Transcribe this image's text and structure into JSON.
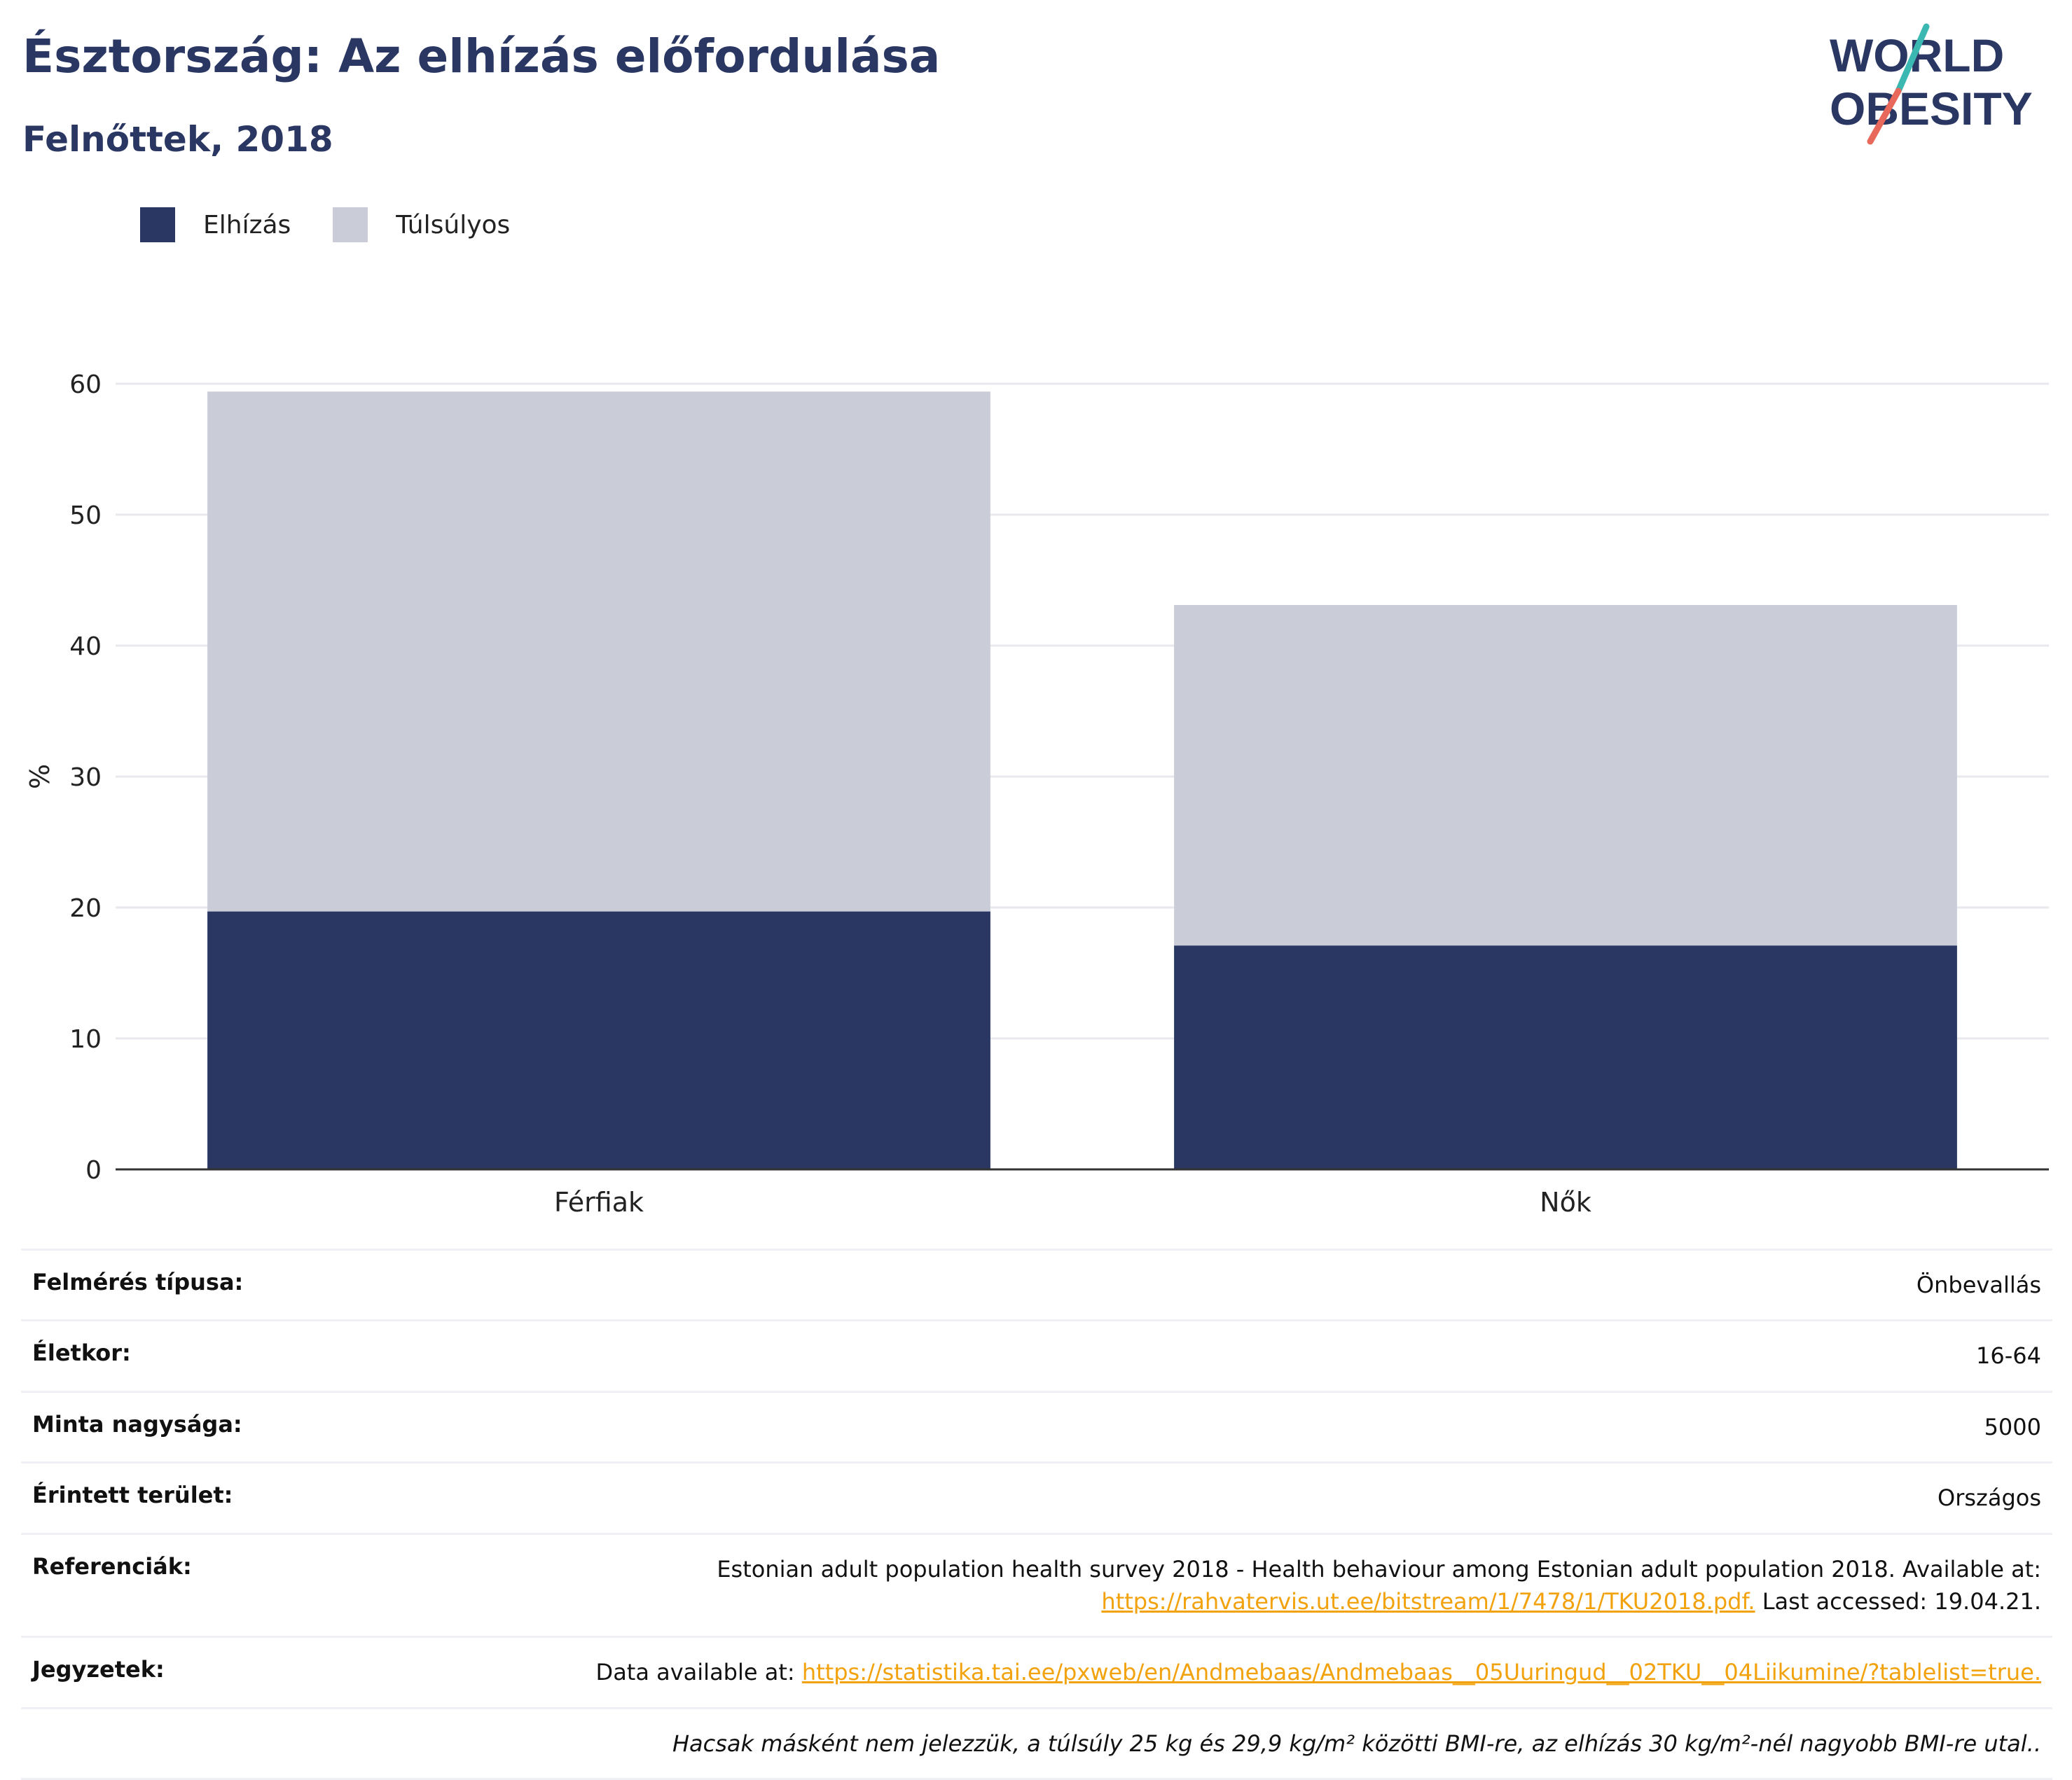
{
  "header": {
    "title": "Észtország: Az elhízás előfordulása",
    "subtitle": "Felnőttek, 2018"
  },
  "logo": {
    "line1": "WORLD",
    "line2": "OBESITY",
    "colors": {
      "text": "#2a3763",
      "slash_top": "#3bb8b2",
      "slash_bottom": "#e8695b"
    }
  },
  "legend": [
    {
      "label": "Elhízás",
      "color": "#2a3763"
    },
    {
      "label": "Túlsúlyos",
      "color": "#cacdd8"
    }
  ],
  "chart_data": {
    "type": "bar",
    "stacked": true,
    "categories": [
      "Férfiak",
      "Nők"
    ],
    "series": [
      {
        "name": "Elhízás",
        "values": [
          19.7,
          17.1
        ],
        "color": "#2a3763"
      },
      {
        "name": "Túlsúlyos",
        "values": [
          39.7,
          26.0
        ],
        "color": "#cacdd8"
      }
    ],
    "ylabel": "%",
    "ylim": [
      0,
      60
    ],
    "yticks": [
      0,
      10,
      20,
      30,
      40,
      50,
      60
    ],
    "grid": true,
    "legend_position": "top-left"
  },
  "info": {
    "survey_type": {
      "label": "Felmérés típusa:",
      "value": "Önbevallás"
    },
    "age": {
      "label": "Életkor:",
      "value": "16-64"
    },
    "sample": {
      "label": "Minta nagysága:",
      "value": "5000"
    },
    "area": {
      "label": "Érintett terület:",
      "value": "Országos"
    },
    "references": {
      "label": "Referenciák:",
      "text1": "Estonian adult population health survey 2018 - Health behaviour among Estonian adult population 2018. Available at:",
      "link": "https://rahvatervis.ut.ee/bitstream/1/7478/1/TKU2018.pdf.",
      "text2": " Last accessed: 19.04.21."
    },
    "notes": {
      "label": "Jegyzetek:",
      "prefix": "Data available at: ",
      "link": "https://statistika.tai.ee/pxweb/en/Andmebaas/Andmebaas__05Uuringud__02TKU__04Liikumine/?tablelist=true."
    },
    "footnote": "Hacsak másként nem jelezzük, a túlsúly 25 kg és 29,9 kg/m² közötti BMI-re, az elhízás 30 kg/m²-nél nagyobb BMI-re utal.."
  }
}
